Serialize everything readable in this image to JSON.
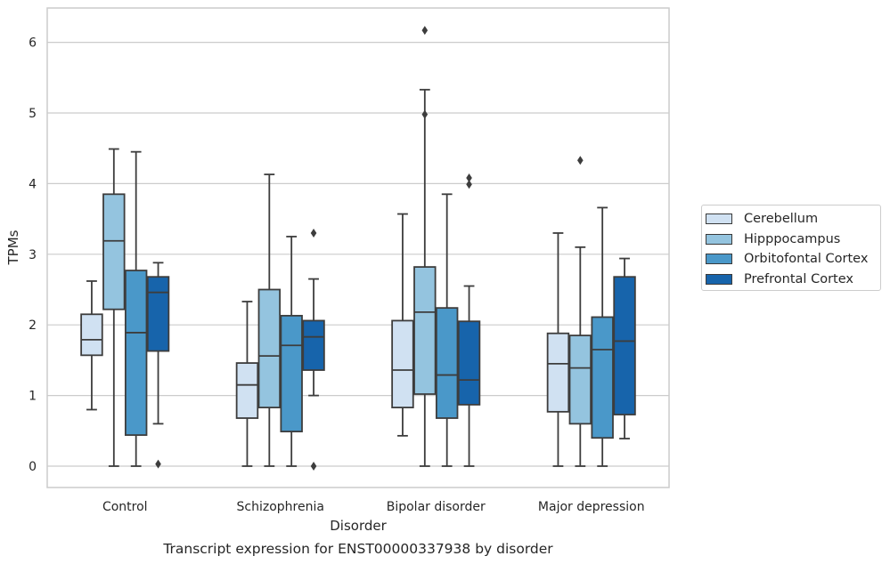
{
  "chart_data": {
    "type": "box",
    "title": "Transcript expression for ENST00000337938 by disorder",
    "xlabel": "Disorder",
    "ylabel": "TPMs",
    "ylim": [
      -0.3,
      6.5
    ],
    "yticks": [
      0,
      1,
      2,
      3,
      4,
      5,
      6
    ],
    "categories": [
      "Control",
      "Schizophrenia",
      "Bipolar disorder",
      "Major depression"
    ],
    "grid": "horizontal",
    "legend_position": "right",
    "series": [
      {
        "name": "Cerebellum",
        "color": "#d0e1f2",
        "boxes": [
          {
            "whisker_low": 0.8,
            "q1": 1.57,
            "median": 1.79,
            "q3": 2.15,
            "whisker_high": 2.62,
            "outliers": []
          },
          {
            "whisker_low": 0.0,
            "q1": 0.68,
            "median": 1.15,
            "q3": 1.46,
            "whisker_high": 2.33,
            "outliers": []
          },
          {
            "whisker_low": 0.43,
            "q1": 0.83,
            "median": 1.36,
            "q3": 2.06,
            "whisker_high": 3.57,
            "outliers": []
          },
          {
            "whisker_low": 0.0,
            "q1": 0.77,
            "median": 1.45,
            "q3": 1.88,
            "whisker_high": 3.3,
            "outliers": []
          }
        ]
      },
      {
        "name": "Hipppocampus",
        "color": "#94c4df",
        "boxes": [
          {
            "whisker_low": 0.0,
            "q1": 2.22,
            "median": 3.19,
            "q3": 3.85,
            "whisker_high": 4.49,
            "outliers": []
          },
          {
            "whisker_low": 0.0,
            "q1": 0.83,
            "median": 1.56,
            "q3": 2.5,
            "whisker_high": 4.13,
            "outliers": []
          },
          {
            "whisker_low": 0.0,
            "q1": 1.02,
            "median": 2.18,
            "q3": 2.82,
            "whisker_high": 5.33,
            "outliers": [
              4.98,
              6.17
            ]
          },
          {
            "whisker_low": 0.0,
            "q1": 0.6,
            "median": 1.39,
            "q3": 1.85,
            "whisker_high": 3.1,
            "outliers": [
              4.33
            ]
          }
        ]
      },
      {
        "name": "Orbitofontal Cortex",
        "color": "#4a98c9",
        "boxes": [
          {
            "whisker_low": 0.0,
            "q1": 0.44,
            "median": 1.89,
            "q3": 2.77,
            "whisker_high": 4.45,
            "outliers": []
          },
          {
            "whisker_low": 0.0,
            "q1": 0.49,
            "median": 1.71,
            "q3": 2.13,
            "whisker_high": 3.25,
            "outliers": []
          },
          {
            "whisker_low": 0.0,
            "q1": 0.68,
            "median": 1.29,
            "q3": 2.24,
            "whisker_high": 3.85,
            "outliers": []
          },
          {
            "whisker_low": 0.0,
            "q1": 0.4,
            "median": 1.65,
            "q3": 2.11,
            "whisker_high": 3.66,
            "outliers": []
          }
        ]
      },
      {
        "name": "Prefrontal Cortex",
        "color": "#1764ab",
        "boxes": [
          {
            "whisker_low": 0.6,
            "q1": 1.63,
            "median": 2.46,
            "q3": 2.68,
            "whisker_high": 2.88,
            "outliers": [
              0.03
            ]
          },
          {
            "whisker_low": 1.0,
            "q1": 1.36,
            "median": 1.83,
            "q3": 2.06,
            "whisker_high": 2.65,
            "outliers": [
              0.0,
              3.3
            ]
          },
          {
            "whisker_low": 0.0,
            "q1": 0.87,
            "median": 1.22,
            "q3": 2.05,
            "whisker_high": 2.55,
            "outliers": [
              3.99,
              4.08
            ]
          },
          {
            "whisker_low": 0.39,
            "q1": 0.73,
            "median": 1.77,
            "q3": 2.68,
            "whisker_high": 2.94,
            "outliers": []
          }
        ]
      }
    ]
  }
}
